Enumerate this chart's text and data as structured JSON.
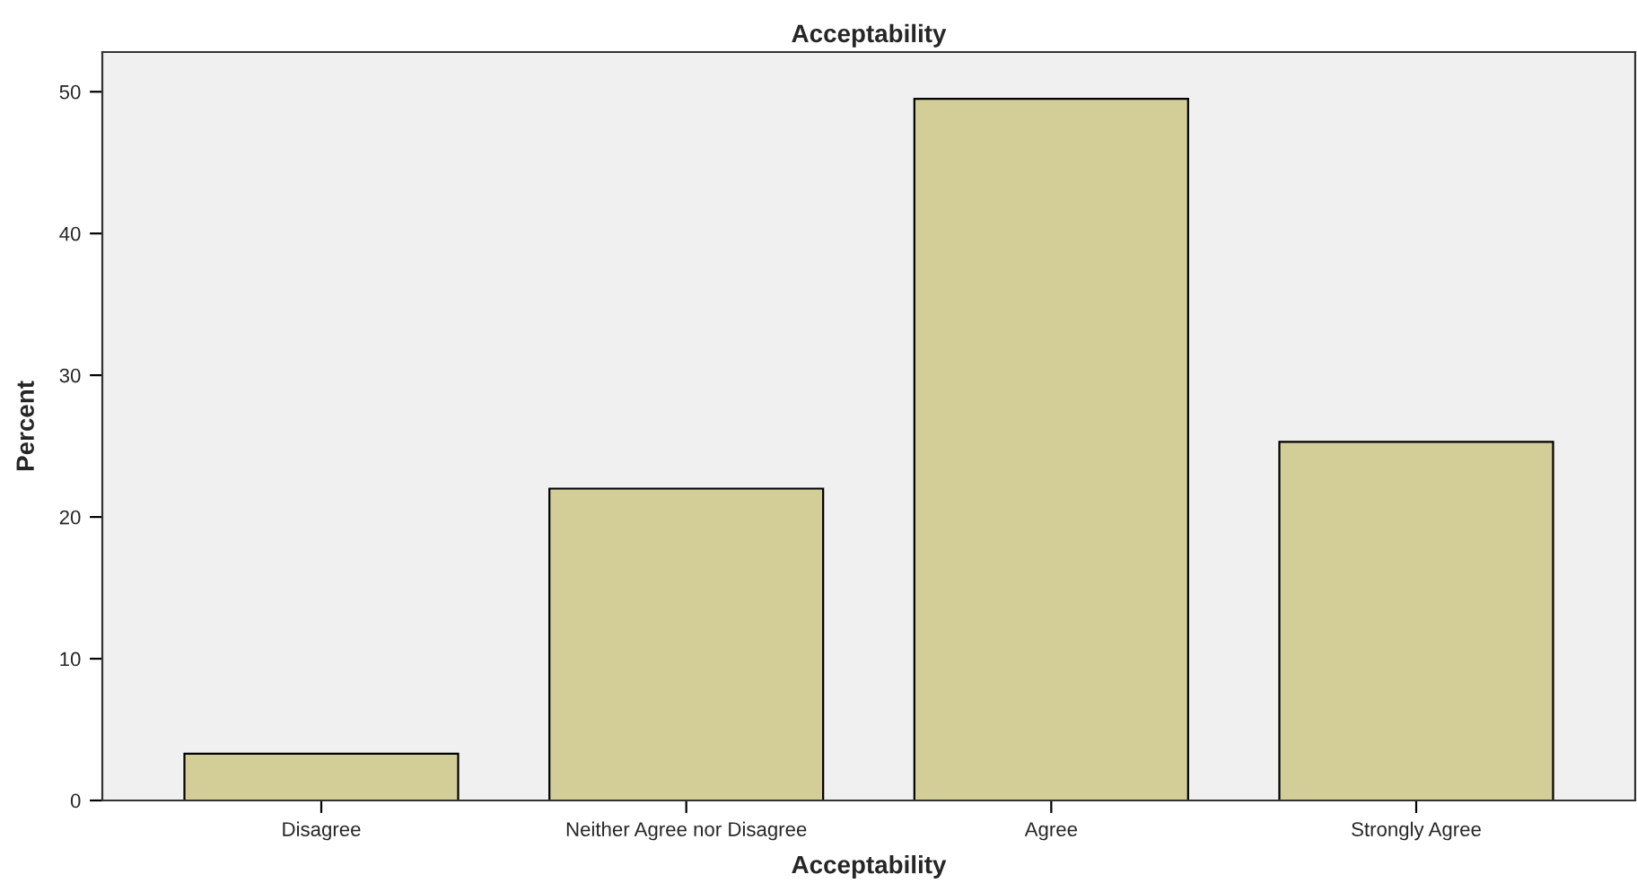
{
  "chart_data": {
    "type": "bar",
    "title": "Acceptability",
    "xlabel": "Acceptability",
    "ylabel": "Percent",
    "categories": [
      "Disagree",
      "Neither Agree nor Disagree",
      "Agree",
      "Strongly Agree"
    ],
    "values": [
      3.3,
      22.0,
      49.5,
      25.3
    ],
    "color": "#d3ce98",
    "ylim": [
      0,
      52.8
    ],
    "yticks": [
      0,
      10,
      20,
      30,
      40,
      50
    ],
    "grid": false
  }
}
